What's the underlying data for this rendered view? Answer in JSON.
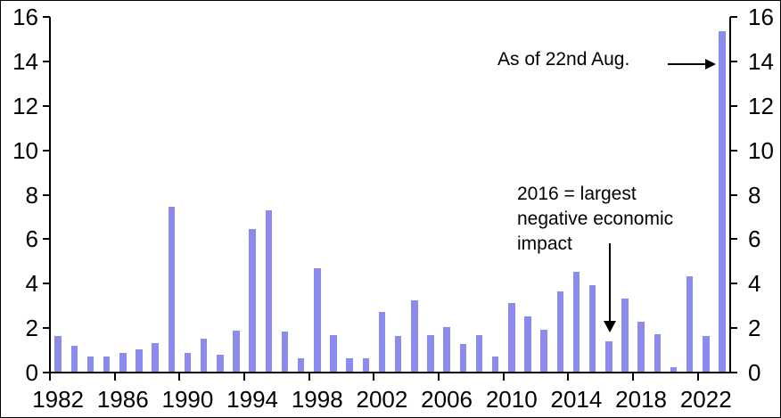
{
  "annotations": {
    "as_of_aug": {
      "text": "As of 22nd Aug."
    },
    "note_2016": {
      "line1": "2016 = largest",
      "line2": "negative economic",
      "line3": "impact"
    }
  },
  "chart_data": {
    "type": "bar",
    "title": "",
    "xlabel": "",
    "ylabel": "",
    "categories": [
      1982,
      1983,
      1984,
      1985,
      1986,
      1987,
      1988,
      1989,
      1990,
      1991,
      1992,
      1993,
      1994,
      1995,
      1996,
      1997,
      1998,
      1999,
      2000,
      2001,
      2002,
      2003,
      2004,
      2005,
      2006,
      2007,
      2008,
      2009,
      2010,
      2011,
      2012,
      2013,
      2014,
      2015,
      2016,
      2017,
      2018,
      2019,
      2020,
      2021,
      2022,
      2023
    ],
    "values": [
      1.6,
      1.15,
      0.7,
      0.7,
      0.85,
      1.0,
      1.3,
      7.4,
      0.85,
      1.5,
      0.75,
      1.85,
      6.4,
      7.25,
      1.8,
      0.6,
      4.65,
      1.65,
      0.6,
      0.6,
      2.7,
      1.6,
      3.2,
      1.65,
      2.0,
      1.25,
      1.65,
      0.7,
      3.1,
      2.5,
      1.9,
      3.6,
      4.5,
      3.9,
      1.35,
      3.3,
      2.25,
      1.7,
      0.2,
      4.3,
      1.6,
      15.3
    ],
    "x_tick_labels": [
      "1982",
      "1986",
      "1990",
      "1994",
      "1998",
      "2002",
      "2006",
      "2010",
      "2014",
      "2018",
      "2022"
    ],
    "x_label_interval": 4,
    "y_ticks": [
      0,
      2,
      4,
      6,
      8,
      10,
      12,
      14,
      16
    ],
    "ylim": [
      0,
      16
    ],
    "grid": "off",
    "legend": "none",
    "dual_y_axis": true,
    "bar_color": "#8B8BEE",
    "axis_color": "#000000",
    "annotations_meta": [
      {
        "text": "As of 22nd Aug.",
        "arrow": "right",
        "points_to_category": 2023
      },
      {
        "text": "2016 = largest negative economic impact",
        "arrow": "down",
        "points_to_category": 2016
      }
    ]
  }
}
